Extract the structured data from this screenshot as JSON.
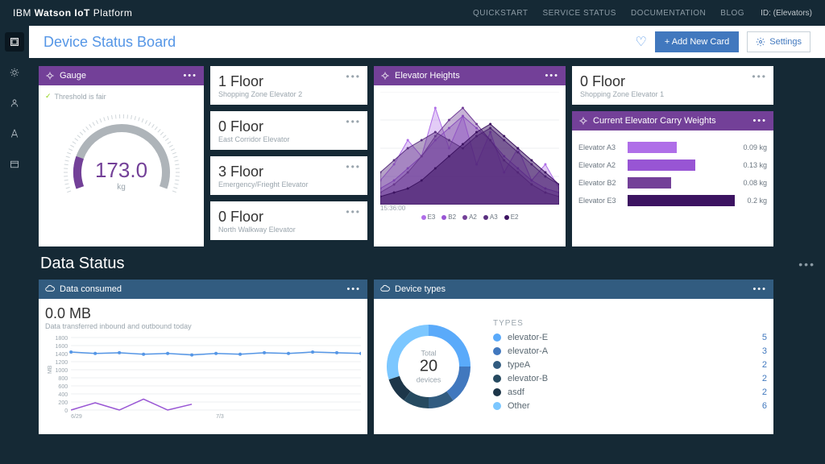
{
  "brand": {
    "prefix": "IBM ",
    "bold": "Watson IoT",
    "suffix": " Platform"
  },
  "topnav": [
    "QUICKSTART",
    "SERVICE STATUS",
    "DOCUMENTATION",
    "BLOG"
  ],
  "id_label": "ID: (Elevators)",
  "page_title": "Device Status Board",
  "actions": {
    "add": "+ Add New Card",
    "settings": "Settings"
  },
  "gauge_card": {
    "title": "Gauge",
    "threshold_text": "Threshold is fair",
    "value": "173.0",
    "unit": "kg",
    "arc_bg": "#aeb4b9",
    "arc_fg": "#734098",
    "arc_pct": 0.18,
    "tick_color": "#d0d6da"
  },
  "floors": [
    {
      "value": "1 Floor",
      "sub": "Shopping Zone Elevator 2"
    },
    {
      "value": "0 Floor",
      "sub": "East Corridor Elevator"
    },
    {
      "value": "3 Floor",
      "sub": "Emergency/Frieght Elevator"
    },
    {
      "value": "0 Floor",
      "sub": "North Walkway Elevator"
    }
  ],
  "heights_card": {
    "title": "Elevator Heights",
    "timestamp": "15:36:00",
    "legend": [
      {
        "label": "E3",
        "color": "#af6ee8"
      },
      {
        "label": "B2",
        "color": "#9855d4"
      },
      {
        "label": "A2",
        "color": "#734098"
      },
      {
        "label": "A3",
        "color": "#5a3080"
      },
      {
        "label": "E2",
        "color": "#3c1361"
      }
    ],
    "series": [
      {
        "color": "#af6ee8",
        "opacity": 0.35,
        "points": [
          30,
          50,
          80,
          60,
          120,
          70,
          110,
          50,
          90,
          40,
          70,
          30,
          50,
          20
        ]
      },
      {
        "color": "#9855d4",
        "opacity": 0.35,
        "points": [
          20,
          30,
          45,
          60,
          80,
          95,
          110,
          95,
          80,
          60,
          45,
          30,
          20,
          15
        ]
      },
      {
        "color": "#734098",
        "opacity": 0.4,
        "points": [
          15,
          25,
          40,
          60,
          85,
          105,
          120,
          100,
          80,
          55,
          40,
          25,
          15,
          10
        ]
      },
      {
        "color": "#5a3080",
        "opacity": 0.45,
        "points": [
          40,
          55,
          70,
          80,
          90,
          80,
          70,
          85,
          95,
          80,
          65,
          50,
          35,
          25
        ]
      },
      {
        "color": "#3c1361",
        "opacity": 0.5,
        "points": [
          10,
          15,
          20,
          30,
          45,
          60,
          75,
          90,
          100,
          85,
          70,
          55,
          40,
          25
        ]
      }
    ]
  },
  "shop_floor": {
    "value": "0 Floor",
    "sub": "Shopping Zone Elevator 1"
  },
  "carry_card": {
    "title": "Current Elevator Carry Weights",
    "rows": [
      {
        "label": "Elevator A3",
        "pct": 0.45,
        "color": "#af6ee8",
        "value": "0.09 kg"
      },
      {
        "label": "Elevator A2",
        "pct": 0.62,
        "color": "#9855d4",
        "value": "0.13 kg"
      },
      {
        "label": "Elevator B2",
        "pct": 0.4,
        "color": "#734098",
        "value": "0.08 kg"
      },
      {
        "label": "Elevator E3",
        "pct": 0.95,
        "color": "#3c1361",
        "value": "0.2 kg"
      }
    ]
  },
  "data_status_title": "Data Status",
  "data_consumed": {
    "title": "Data consumed",
    "value": "0.0 MB",
    "subtitle": "Data transferred inbound and outbound today",
    "y_unit": "MB",
    "y_ticks": [
      "1800",
      "1600",
      "1400",
      "1200",
      "1000",
      "800",
      "600",
      "400",
      "200",
      "0"
    ],
    "x_labels": [
      "6/29",
      "7/3"
    ],
    "line_color": "#5596e6",
    "line2_color": "#9855d4",
    "points": [
      80,
      78,
      79,
      77,
      78,
      76,
      78,
      77,
      79,
      78,
      80,
      79,
      78
    ]
  },
  "device_types": {
    "title": "Device types",
    "heading": "TYPES",
    "total_label": "Total",
    "total": "20",
    "total_sub": "devices",
    "segments": [
      {
        "color": "#5aaafa",
        "pct": 0.25
      },
      {
        "color": "#4178be",
        "pct": 0.15
      },
      {
        "color": "#325c80",
        "pct": 0.1
      },
      {
        "color": "#264a60",
        "pct": 0.1
      },
      {
        "color": "#1d3649",
        "pct": 0.1
      },
      {
        "color": "#7cc7ff",
        "pct": 0.3
      }
    ],
    "rows": [
      {
        "label": "elevator-E",
        "count": "5",
        "color": "#5aaafa"
      },
      {
        "label": "elevator-A",
        "count": "3",
        "color": "#4178be"
      },
      {
        "label": "typeA",
        "count": "2",
        "color": "#325c80"
      },
      {
        "label": "elevator-B",
        "count": "2",
        "color": "#264a60"
      },
      {
        "label": "asdf",
        "count": "2",
        "color": "#1d3649"
      },
      {
        "label": "Other",
        "count": "6",
        "color": "#7cc7ff"
      }
    ]
  }
}
